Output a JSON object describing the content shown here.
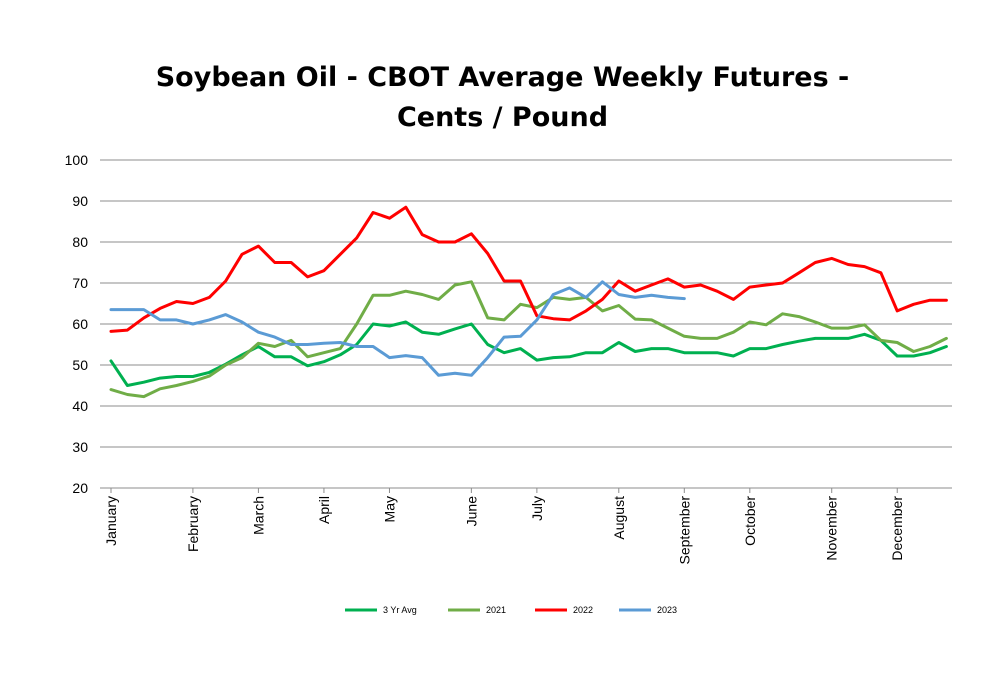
{
  "chart_data": {
    "type": "line",
    "title_line1": "Soybean Oil - CBOT Average Weekly Futures -",
    "title_line2": "Cents / Pound",
    "xlabel": "",
    "ylabel": "",
    "ylim": [
      20,
      100
    ],
    "yticks": [
      20,
      30,
      40,
      50,
      60,
      70,
      80,
      90,
      100
    ],
    "grid": true,
    "legend_position": "bottom",
    "week_count": 52,
    "months": [
      {
        "label": "January",
        "week": 0
      },
      {
        "label": "February",
        "week": 5
      },
      {
        "label": "March",
        "week": 9
      },
      {
        "label": "April",
        "week": 13
      },
      {
        "label": "May",
        "week": 17
      },
      {
        "label": "June",
        "week": 22
      },
      {
        "label": "July",
        "week": 26
      },
      {
        "label": "August",
        "week": 31
      },
      {
        "label": "September",
        "week": 35
      },
      {
        "label": "October",
        "week": 39
      },
      {
        "label": "November",
        "week": 44
      },
      {
        "label": "December",
        "week": 48
      }
    ],
    "series": [
      {
        "name": "3 Yr Avg",
        "color": "#00b050",
        "values": [
          51,
          45,
          45.8,
          46.8,
          47.2,
          47.2,
          48.2,
          50.2,
          52.5,
          54.5,
          52,
          52,
          49.8,
          50.8,
          52.5,
          55,
          60,
          59.5,
          60.5,
          58,
          57.5,
          58.8,
          60,
          55,
          53,
          54,
          51.2,
          51.8,
          52,
          53,
          53,
          55.5,
          53.3,
          54,
          54,
          53,
          53,
          53,
          52.2,
          54,
          54,
          55,
          55.8,
          56.5,
          56.5,
          56.5,
          57.5,
          56,
          52.2,
          52.2,
          53,
          54.5
        ]
      },
      {
        "name": "2021",
        "color": "#70ad47",
        "values": [
          44,
          42.8,
          42.3,
          44.2,
          45,
          46,
          47.3,
          50,
          51.8,
          55.3,
          54.5,
          56,
          52,
          53,
          54,
          60,
          67,
          67,
          68,
          67.2,
          66,
          69.5,
          70.3,
          61.5,
          61,
          64.8,
          64,
          66.5,
          66,
          66.5,
          63.2,
          64.5,
          61.2,
          61,
          59,
          57,
          56.5,
          56.5,
          58,
          60.5,
          59.8,
          62.5,
          61.8,
          60.5,
          59,
          59,
          59.8,
          56,
          55.5,
          53.3,
          54.5,
          56.5
        ]
      },
      {
        "name": "2022",
        "color": "#ff0000",
        "values": [
          58.2,
          58.5,
          61.5,
          63.8,
          65.5,
          65,
          66.5,
          70.5,
          77,
          79,
          75,
          75,
          71.5,
          73,
          77,
          81,
          87.2,
          85.8,
          88.5,
          81.8,
          80,
          80,
          82,
          77.2,
          70.5,
          70.5,
          62,
          61.3,
          61,
          63.2,
          66,
          70.5,
          68,
          69.5,
          71,
          69,
          69.5,
          68,
          66,
          69,
          69.5,
          70,
          72.5,
          75,
          76,
          74.5,
          74,
          72.5,
          63.2,
          64.8,
          65.8,
          65.8
        ]
      },
      {
        "name": "2023",
        "color": "#5b9bd5",
        "values": [
          63.5,
          63.5,
          63.5,
          61,
          61,
          60,
          61,
          62.3,
          60.5,
          58,
          56.8,
          55,
          55,
          55.3,
          55.5,
          54.5,
          54.5,
          51.8,
          52.3,
          51.8,
          47.5,
          48,
          47.5,
          51.8,
          56.8,
          57,
          61,
          67.2,
          68.8,
          66.5,
          70.3,
          67.2,
          66.5,
          67,
          66.5,
          66.2
        ]
      }
    ]
  }
}
